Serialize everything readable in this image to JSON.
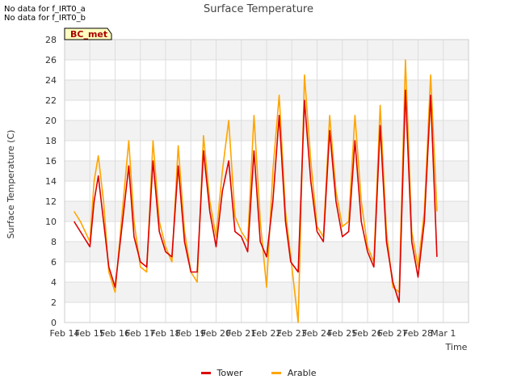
{
  "notes": [
    "No data for f_IRT0_a",
    "No data for f_IRT0_b"
  ],
  "badge": "BC_met",
  "colors": {
    "tower": "#dd0000",
    "arable": "#ffa500",
    "band": "#f2f2f2",
    "grid": "#dddddd"
  },
  "chart_data": {
    "type": "line",
    "title": "Surface Temperature",
    "xlabel": "Time",
    "ylabel": "Surface Temperature (C)",
    "ylim": [
      0,
      28
    ],
    "yticks": [
      0,
      2,
      4,
      6,
      8,
      10,
      12,
      14,
      16,
      18,
      20,
      22,
      24,
      26,
      28
    ],
    "xlim": [
      "2024-02-14",
      "2024-03-01"
    ],
    "xtick_labels": [
      "Feb 14",
      "Feb 15",
      "Feb 16",
      "Feb 17",
      "Feb 18",
      "Feb 19",
      "Feb 20",
      "Feb 21",
      "Feb 22",
      "Feb 23",
      "Feb 24",
      "Feb 25",
      "Feb 26",
      "Feb 27",
      "Feb 28",
      "Mar 1"
    ],
    "grid": true,
    "legend_position": "bottom-center",
    "x": [
      "2024-02-14 09:00",
      "2024-02-14 15:00",
      "2024-02-15 00:00",
      "2024-02-15 04:00",
      "2024-02-15 08:00",
      "2024-02-15 13:00",
      "2024-02-15 18:00",
      "2024-02-16 00:00",
      "2024-02-16 06:00",
      "2024-02-16 13:00",
      "2024-02-16 18:00",
      "2024-02-17 00:00",
      "2024-02-17 06:00",
      "2024-02-17 12:00",
      "2024-02-17 18:00",
      "2024-02-18 00:00",
      "2024-02-18 06:00",
      "2024-02-18 12:00",
      "2024-02-18 18:00",
      "2024-02-19 00:00",
      "2024-02-19 06:00",
      "2024-02-19 12:00",
      "2024-02-19 18:00",
      "2024-02-20 00:00",
      "2024-02-20 06:00",
      "2024-02-20 12:00",
      "2024-02-20 18:00",
      "2024-02-21 00:00",
      "2024-02-21 06:00",
      "2024-02-21 12:00",
      "2024-02-21 18:00",
      "2024-02-22 00:00",
      "2024-02-22 06:00",
      "2024-02-22 12:00",
      "2024-02-22 18:00",
      "2024-02-22 23:00",
      "2024-02-23 06:00",
      "2024-02-23 12:00",
      "2024-02-23 18:00",
      "2024-02-24 00:00",
      "2024-02-24 06:00",
      "2024-02-24 12:00",
      "2024-02-24 18:00",
      "2024-02-25 00:00",
      "2024-02-25 06:00",
      "2024-02-25 12:00",
      "2024-02-25 18:00",
      "2024-02-26 00:00",
      "2024-02-26 06:00",
      "2024-02-26 12:00",
      "2024-02-26 18:00",
      "2024-02-27 00:00",
      "2024-02-27 06:00",
      "2024-02-27 12:00",
      "2024-02-27 18:00",
      "2024-02-28 00:00",
      "2024-02-28 06:00",
      "2024-02-28 12:00",
      "2024-02-28 18:00"
    ],
    "series": [
      {
        "name": "Tower",
        "color": "#dd0000",
        "values": [
          10,
          9,
          7.5,
          12,
          14.5,
          10,
          5.5,
          3.5,
          9,
          15.5,
          8.5,
          6,
          5.5,
          16,
          9,
          7,
          6.5,
          15.5,
          8,
          5,
          5,
          17,
          11,
          7.5,
          13,
          16,
          9,
          8.5,
          7,
          17,
          8,
          6.5,
          12,
          20.5,
          10,
          6,
          5,
          22,
          14,
          9,
          8,
          19,
          12,
          8.5,
          9,
          18,
          10,
          7,
          5.5,
          19.5,
          8,
          4,
          2,
          23,
          8,
          4.5,
          10,
          22.5,
          6.5
        ]
      },
      {
        "name": "Arable",
        "color": "#ffa500",
        "values": [
          11,
          10,
          8,
          14,
          16.5,
          12,
          5,
          3,
          10,
          18,
          10,
          5.5,
          5,
          18,
          10,
          7.5,
          6,
          17.5,
          9,
          5,
          4,
          18.5,
          12,
          8.5,
          15,
          20,
          10.5,
          9,
          8,
          20.5,
          10,
          3.5,
          15,
          22.5,
          11,
          6.5,
          0,
          24.5,
          16,
          9.5,
          8.5,
          20.5,
          13,
          9.5,
          10,
          20.5,
          12,
          7.5,
          6,
          21.5,
          9,
          3.5,
          3,
          26,
          9,
          5.5,
          11,
          24.5,
          11
        ]
      }
    ]
  }
}
